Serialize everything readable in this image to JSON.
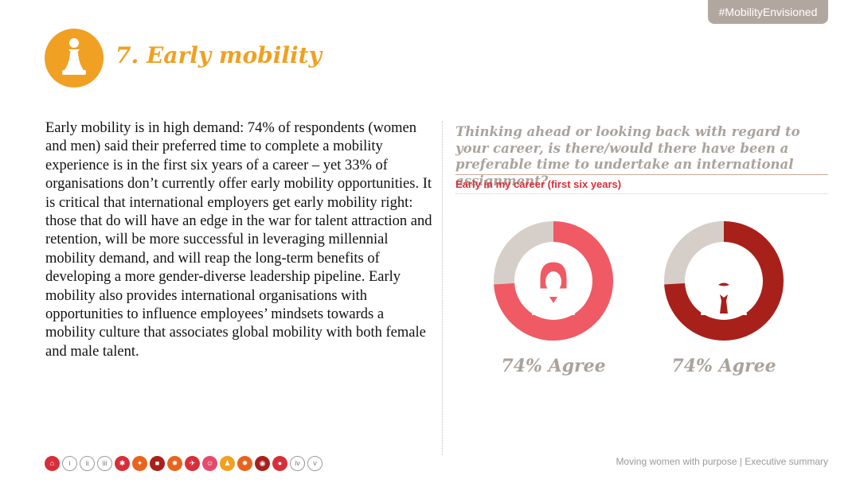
{
  "header": {
    "hashtag": "#MobilityEnvisioned",
    "title": "7. Early mobility",
    "title_icon": "chess-pawn-icon",
    "accent_color": "#f0a022"
  },
  "body_text": "Early mobility is in high demand: 74% of respondents (women and men) said their preferred time to complete a mobility experience is in the first six years of a career – yet 33% of organisations don’t currently offer early mobility opportunities. It is critical that international employers get early mobility right: those that do will have an edge in the war for talent attraction and retention, will be more successful in leveraging millennial mobility demand, and will reap the long-term benefits of developing a more gender-diverse leadership pipeline. Early mobility also provides international organisations with opportunities to influence employees’ mindsets towards a mobility culture that associates global mobility with both female and male talent.",
  "question": "Thinking ahead or looking back with regard to your career, is there/would there have been a preferable time to undertake an international assignment?",
  "subhead": "Early in my career (first six years)",
  "chart_data": {
    "type": "pie",
    "series": [
      {
        "icon": "female-avatar-icon",
        "agree_percent": 74,
        "color": "#f05a64",
        "remainder_color": "#d6cfc9",
        "label": "74% Agree"
      },
      {
        "icon": "male-avatar-icon",
        "agree_percent": 74,
        "color": "#a8201a",
        "remainder_color": "#d6cfc9",
        "label": "74% Agree"
      }
    ]
  },
  "nav": {
    "items": [
      {
        "icon": "home-icon",
        "text": ""
      },
      {
        "icon": "page-i-icon",
        "text": "i"
      },
      {
        "icon": "page-ii-icon",
        "text": "ii"
      },
      {
        "icon": "page-iii-icon",
        "text": "iii"
      },
      {
        "icon": "section-1-icon",
        "text": ""
      },
      {
        "icon": "section-2-icon",
        "text": ""
      },
      {
        "icon": "section-3-icon",
        "text": ""
      },
      {
        "icon": "section-4-icon",
        "text": ""
      },
      {
        "icon": "section-5-icon",
        "text": ""
      },
      {
        "icon": "section-6-icon",
        "text": ""
      },
      {
        "icon": "section-7-icon",
        "text": ""
      },
      {
        "icon": "section-8-icon",
        "text": ""
      },
      {
        "icon": "section-9-icon",
        "text": ""
      },
      {
        "icon": "section-10-icon",
        "text": ""
      },
      {
        "icon": "page-iv-icon",
        "text": "iv"
      },
      {
        "icon": "page-v-icon",
        "text": "v"
      }
    ]
  },
  "footer": "Moving women with purpose | Executive summary"
}
